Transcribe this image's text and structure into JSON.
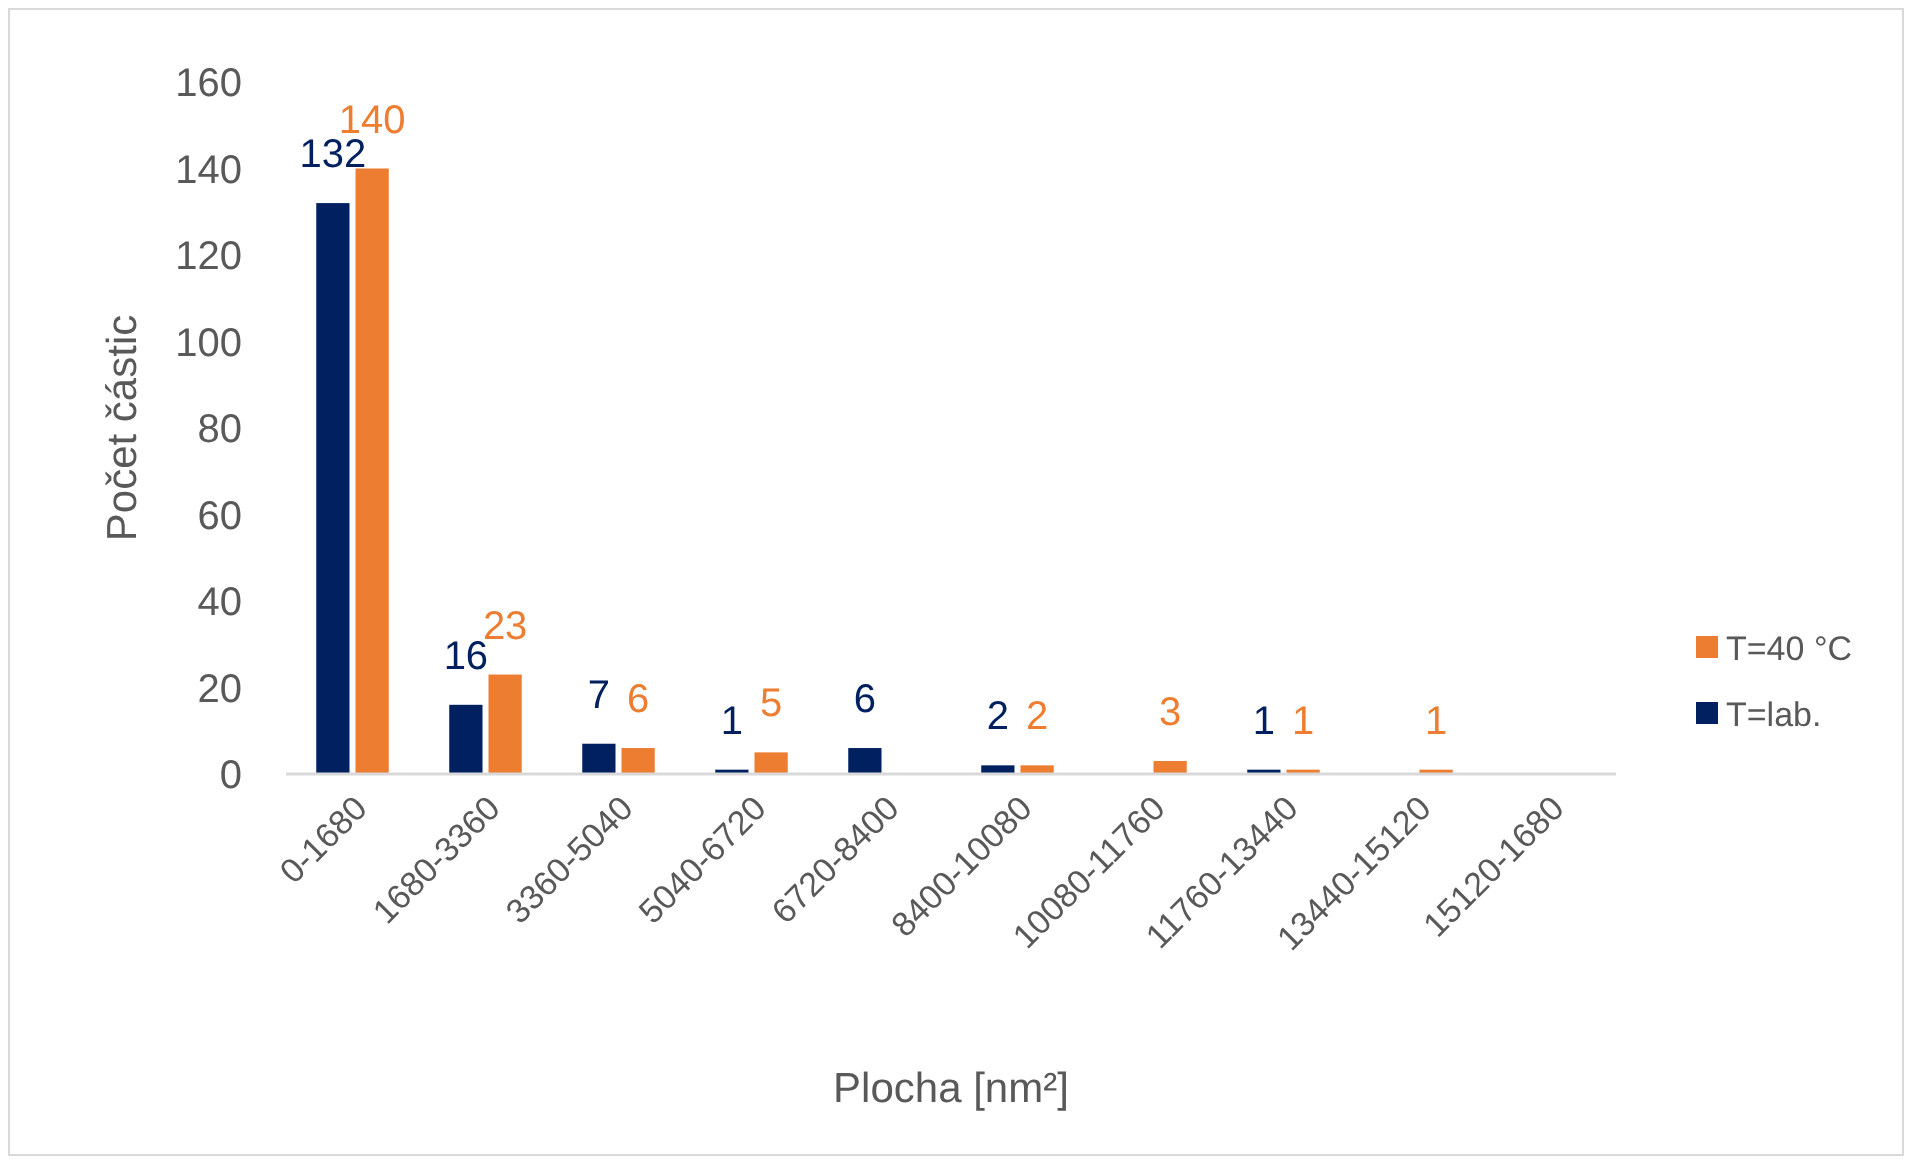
{
  "chart_data": {
    "type": "bar",
    "xlabel": "Plocha [nm²]",
    "ylabel": "Počet částic",
    "categories": [
      "0-1680",
      "1680-3360",
      "3360-5040",
      "5040-6720",
      "6720-8400",
      "8400-10080",
      "10080-11760",
      "11760-13440",
      "13440-15120",
      "15120-1680"
    ],
    "series": [
      {
        "name": "T=lab.",
        "color": "#002060",
        "values": [
          132,
          16,
          7,
          1,
          6,
          2,
          0,
          1,
          0,
          0
        ],
        "value_labels": [
          "132",
          "16",
          "7",
          "1",
          "6",
          "2",
          null,
          "1",
          null,
          null
        ]
      },
      {
        "name": "T=40 °C",
        "color": "#ed7d31",
        "values": [
          140,
          23,
          6,
          5,
          0,
          2,
          3,
          1,
          1,
          0
        ],
        "value_labels": [
          "140",
          "23",
          "6",
          "5",
          null,
          "2",
          "3",
          "1",
          "1",
          null
        ]
      }
    ],
    "ylim": [
      0,
      160
    ],
    "yticks": [
      0,
      20,
      40,
      60,
      80,
      100,
      120,
      140,
      160
    ],
    "legend": "right"
  }
}
